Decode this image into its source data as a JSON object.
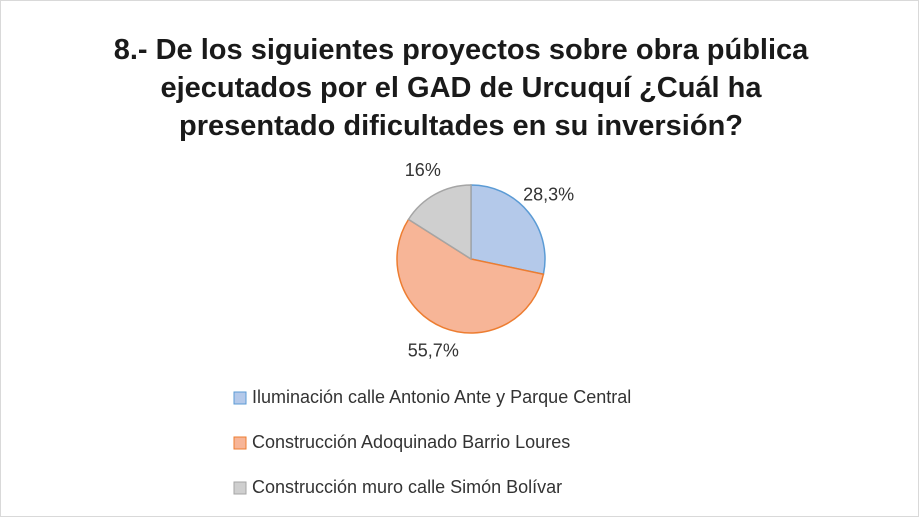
{
  "chart_data": {
    "type": "pie",
    "title": "8.- De los siguientes proyectos sobre obra pública ejecutados por el GAD de Urcuquí ¿Cuál ha presentado dificultades en su inversión?",
    "categories": [
      "Iluminación calle Antonio Ante y Parque Central",
      "Construcción Adoquinado Barrio Loures",
      "Construcción muro calle Simón Bolívar"
    ],
    "values": [
      28.3,
      55.7,
      16
    ],
    "value_labels": [
      "28,3%",
      "55,7%",
      "16%"
    ],
    "colors": [
      "#b4c9ea",
      "#f7b597",
      "#cfcfcf"
    ],
    "edge_colors": [
      "#5b9bd5",
      "#ed7d31",
      "#a5a5a5"
    ],
    "legend": "bottom"
  }
}
